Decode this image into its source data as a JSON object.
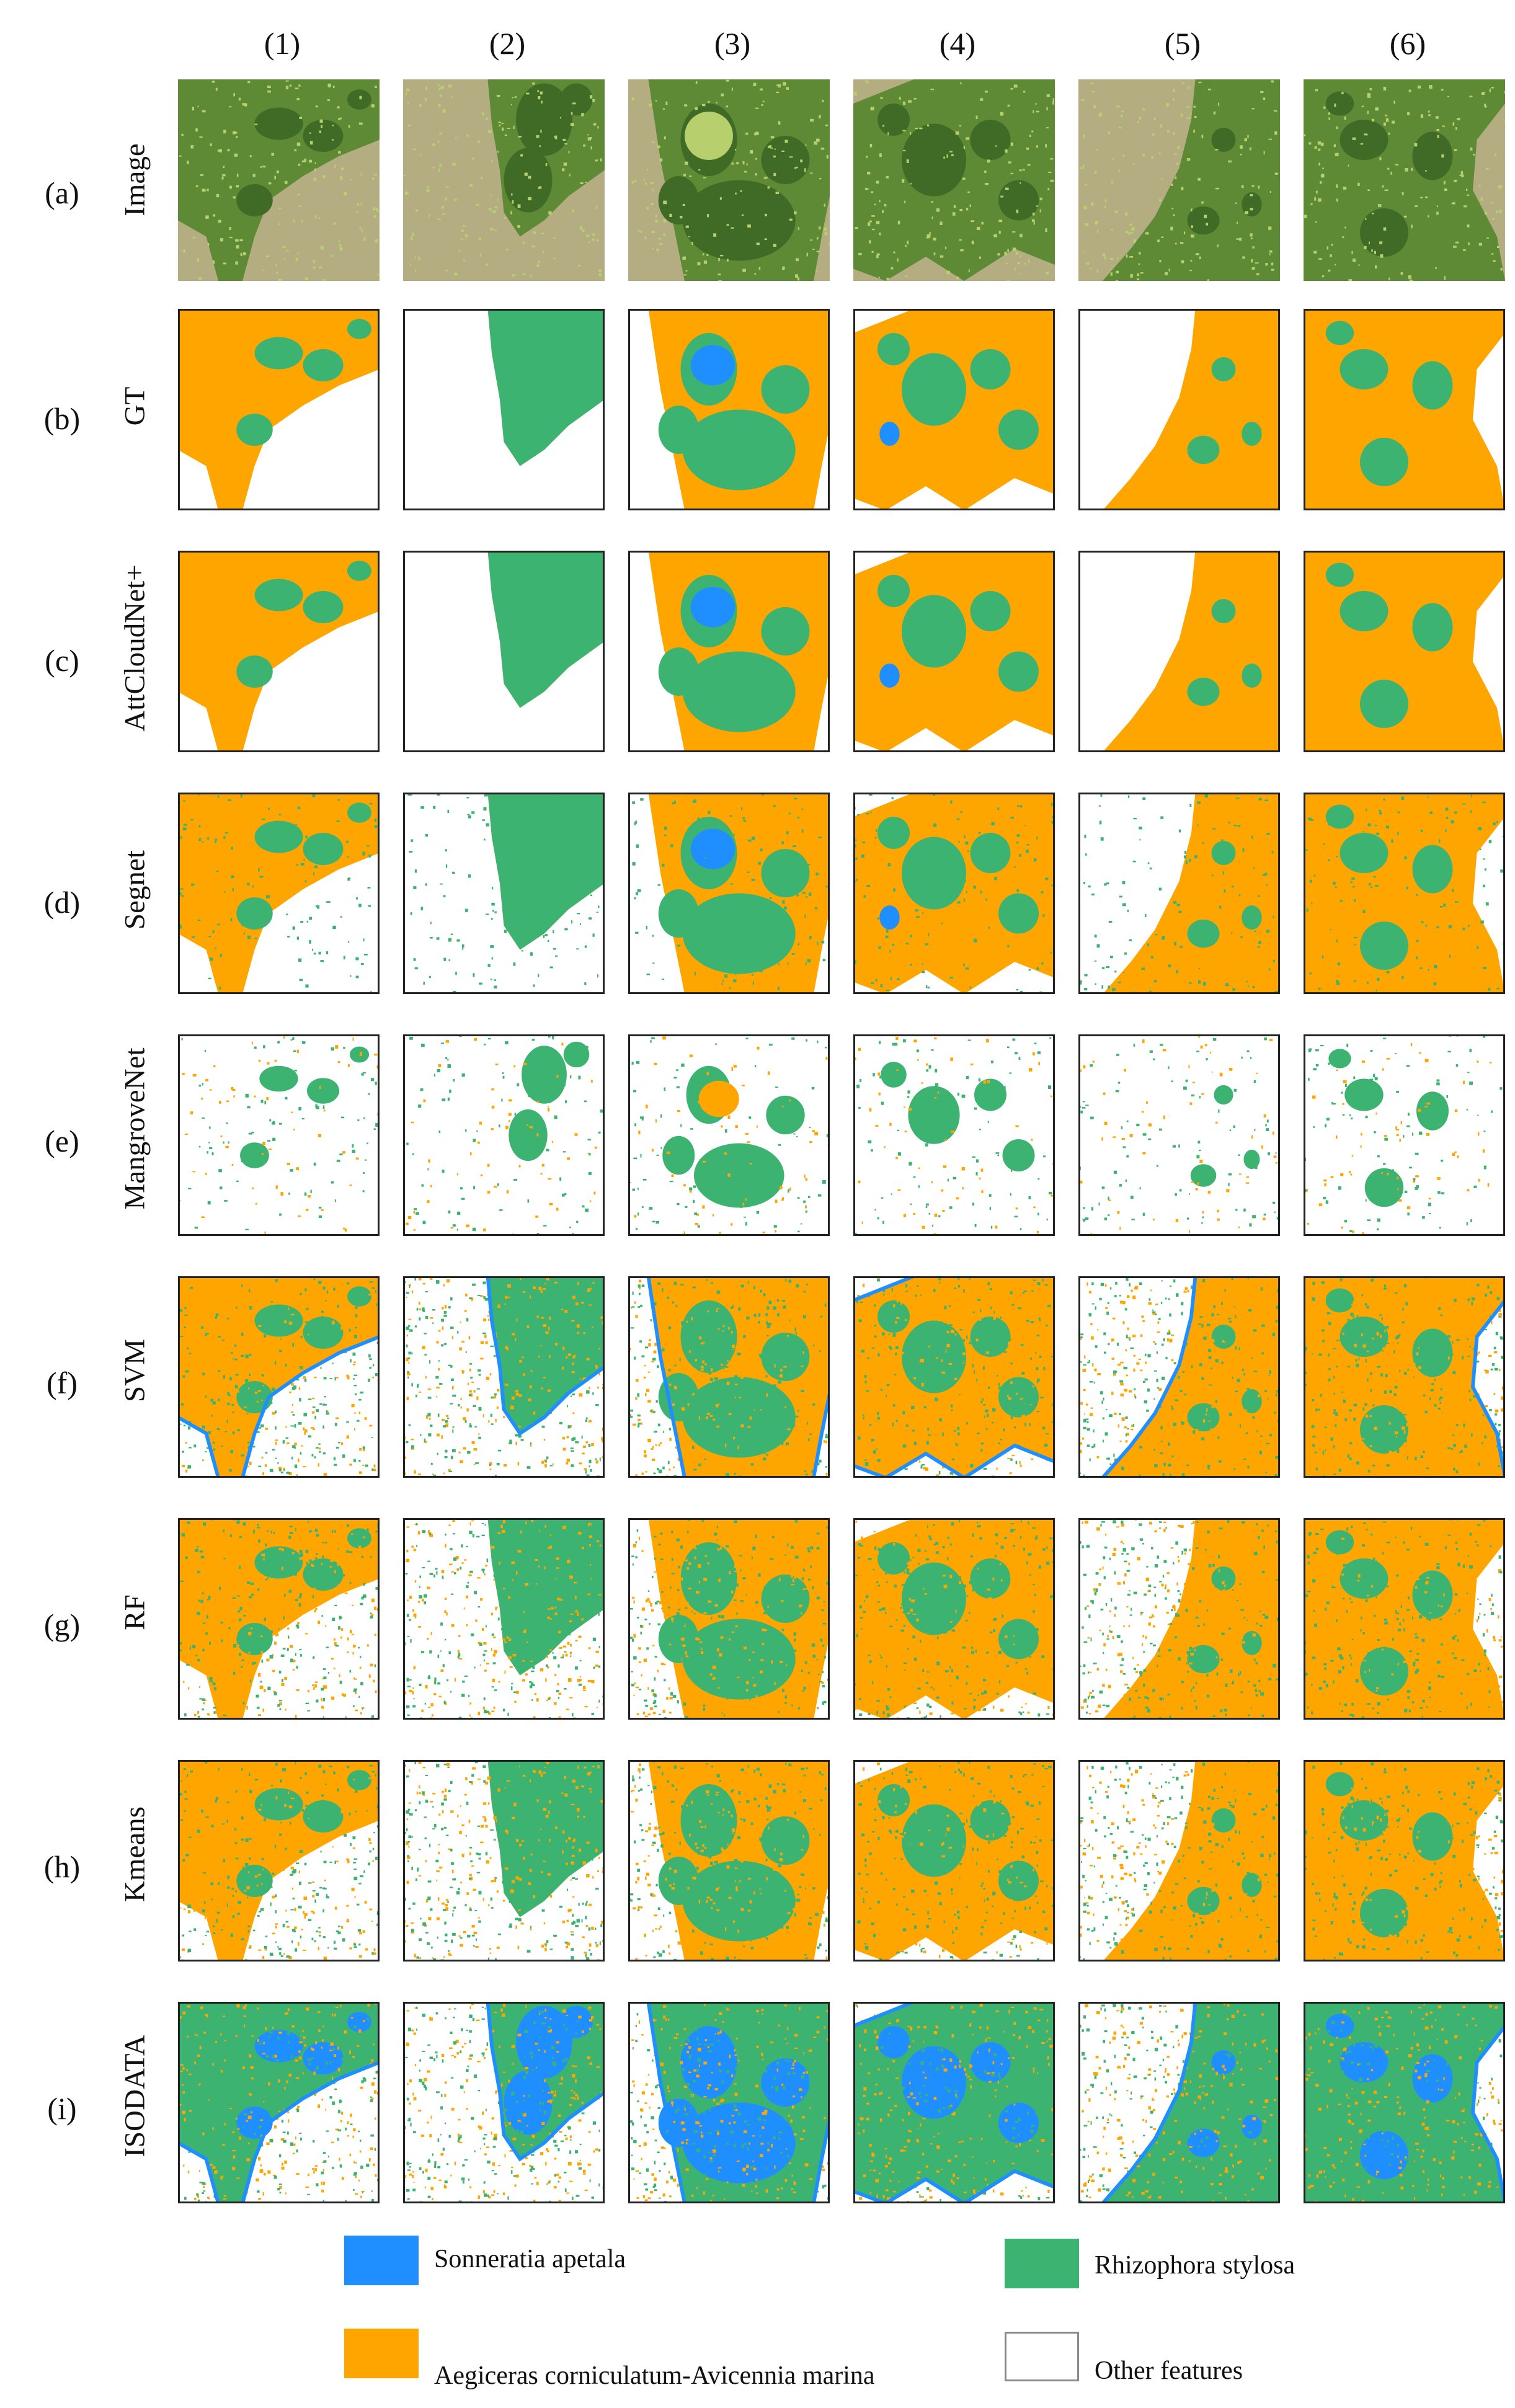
{
  "columns": [
    "(1)",
    "(2)",
    "(3)",
    "(4)",
    "(5)",
    "(6)"
  ],
  "rows": [
    {
      "letter": "(a)",
      "method": "Image"
    },
    {
      "letter": "(b)",
      "method": "GT"
    },
    {
      "letter": "(c)",
      "method": "AttCloudNet+"
    },
    {
      "letter": "(d)",
      "method": "Segnet"
    },
    {
      "letter": "(e)",
      "method": "MangroveNet"
    },
    {
      "letter": "(f)",
      "method": "SVM"
    },
    {
      "letter": "(g)",
      "method": "RF"
    },
    {
      "letter": "(h)",
      "method": "Kmeans"
    },
    {
      "letter": "(i)",
      "method": "ISODATA"
    }
  ],
  "legend": [
    {
      "label": "Sonneratia apetala",
      "color": "#1f8fff"
    },
    {
      "label": "Rhizophora stylosa",
      "color": "#3cb371"
    },
    {
      "label": "Aegiceras corniculatum-Avicennia marina",
      "color": "#ffa500"
    },
    {
      "label": "Other features",
      "color": "#ffffff"
    }
  ],
  "colors": {
    "sonneratia": "#1f8fff",
    "rhizophora": "#3cb371",
    "aegiceras": "#ffa500",
    "other": "#ffffff",
    "water": "#b5ad82",
    "vegetation": "#5f8a35",
    "vegetation_dark": "#3f6b26",
    "vegetation_light": "#b8cf6e"
  }
}
